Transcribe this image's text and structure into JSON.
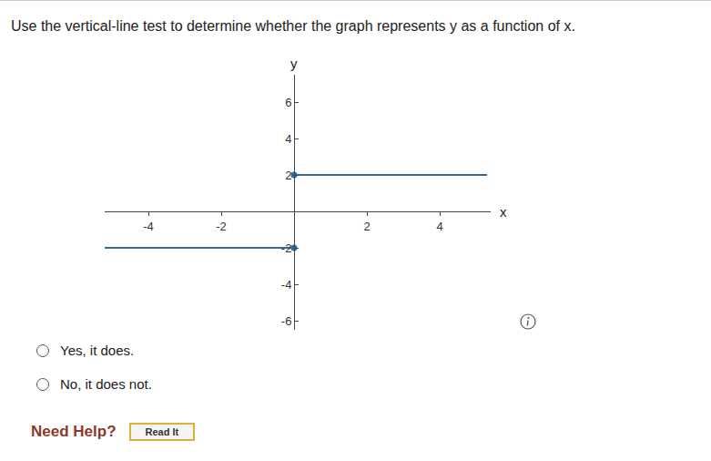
{
  "question": "Use the vertical-line test to determine whether the graph represents y as a function of x.",
  "chart_data": {
    "type": "line",
    "xlabel": "x",
    "ylabel": "y",
    "xlim": [
      -5.2,
      5.4
    ],
    "xticks": [
      -4,
      -2,
      2,
      4
    ],
    "ylim": [
      -6.5,
      7.5
    ],
    "yticks": [
      -6,
      -4,
      -2,
      2,
      4,
      6
    ],
    "grid": false,
    "series": [
      {
        "x": [
          -5.2,
          0
        ],
        "values": [
          -2,
          -2
        ],
        "color": "#2f6fa8"
      },
      {
        "x": [
          0,
          5.3
        ],
        "values": [
          2,
          2
        ],
        "color": "#2f6fa8"
      },
      {
        "type": "scatter",
        "x": [
          0,
          0
        ],
        "values": [
          2,
          -2
        ],
        "color": "#2f6fa8",
        "marker": "circle"
      }
    ]
  },
  "options": [
    "Yes, it does.",
    "No, it does not."
  ],
  "help": {
    "label": "Need Help?",
    "button": "Read It"
  }
}
